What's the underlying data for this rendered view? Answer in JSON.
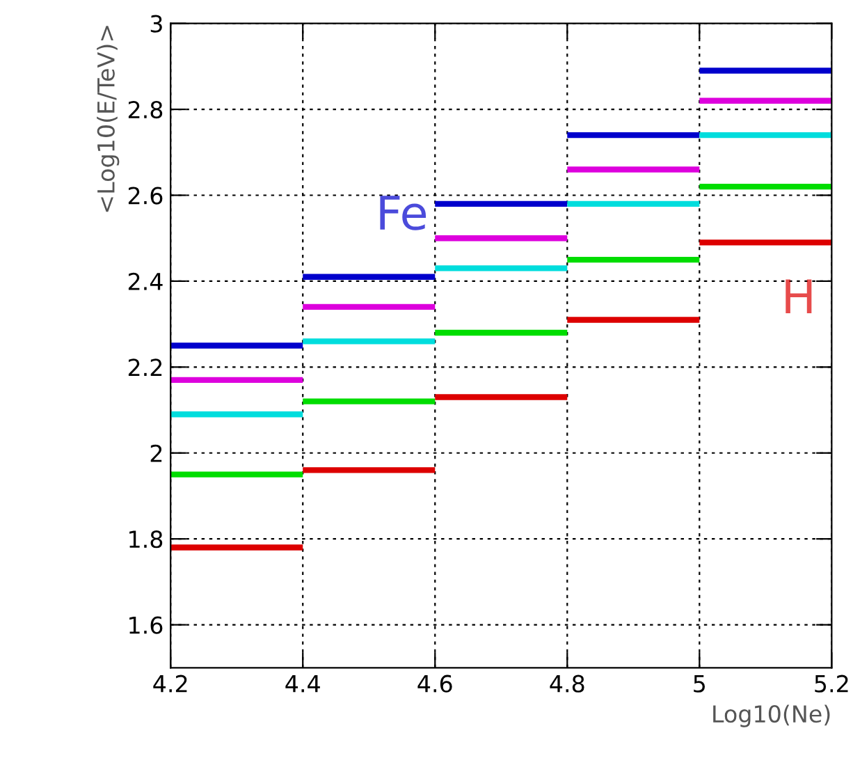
{
  "chart_data": {
    "type": "line",
    "xlabel": "Log10(Ne)",
    "ylabel": "<Log10(E/TeV)>",
    "series": [
      {
        "color": "#0000cc",
        "x": [
          4.2,
          4.4
        ],
        "values": [
          2.25,
          2.25
        ]
      },
      {
        "color": "#0000cc",
        "x": [
          4.4,
          4.6
        ],
        "values": [
          2.41,
          2.41
        ]
      },
      {
        "color": "#0000cc",
        "x": [
          4.6,
          4.8
        ],
        "values": [
          2.58,
          2.58
        ]
      },
      {
        "color": "#0000cc",
        "x": [
          4.8,
          5.0
        ],
        "values": [
          2.74,
          2.74
        ]
      },
      {
        "color": "#0000cc",
        "x": [
          5.0,
          5.2
        ],
        "values": [
          2.89,
          2.89
        ]
      },
      {
        "color": "#dd00dd",
        "x": [
          4.2,
          4.4
        ],
        "values": [
          2.17,
          2.17
        ]
      },
      {
        "color": "#dd00dd",
        "x": [
          4.4,
          4.6
        ],
        "values": [
          2.34,
          2.34
        ]
      },
      {
        "color": "#dd00dd",
        "x": [
          4.6,
          4.8
        ],
        "values": [
          2.5,
          2.5
        ]
      },
      {
        "color": "#dd00dd",
        "x": [
          4.8,
          5.0
        ],
        "values": [
          2.66,
          2.66
        ]
      },
      {
        "color": "#dd00dd",
        "x": [
          5.0,
          5.2
        ],
        "values": [
          2.82,
          2.82
        ]
      },
      {
        "color": "#00dddd",
        "x": [
          4.2,
          4.4
        ],
        "values": [
          2.09,
          2.09
        ]
      },
      {
        "color": "#00dddd",
        "x": [
          4.4,
          4.6
        ],
        "values": [
          2.26,
          2.26
        ]
      },
      {
        "color": "#00dddd",
        "x": [
          4.6,
          4.8
        ],
        "values": [
          2.43,
          2.43
        ]
      },
      {
        "color": "#00dddd",
        "x": [
          4.8,
          5.0
        ],
        "values": [
          2.58,
          2.58
        ]
      },
      {
        "color": "#00dddd",
        "x": [
          5.0,
          5.2
        ],
        "values": [
          2.74,
          2.74
        ]
      },
      {
        "color": "#00dd00",
        "x": [
          4.2,
          4.4
        ],
        "values": [
          1.95,
          1.95
        ]
      },
      {
        "color": "#00dd00",
        "x": [
          4.4,
          4.6
        ],
        "values": [
          2.12,
          2.12
        ]
      },
      {
        "color": "#00dd00",
        "x": [
          4.6,
          4.8
        ],
        "values": [
          2.28,
          2.28
        ]
      },
      {
        "color": "#00dd00",
        "x": [
          4.8,
          5.0
        ],
        "values": [
          2.45,
          2.45
        ]
      },
      {
        "color": "#00dd00",
        "x": [
          5.0,
          5.2
        ],
        "values": [
          2.62,
          2.62
        ]
      },
      {
        "color": "#dd0000",
        "x": [
          4.2,
          4.4
        ],
        "values": [
          1.78,
          1.78
        ]
      },
      {
        "color": "#dd0000",
        "x": [
          4.4,
          4.6
        ],
        "values": [
          1.96,
          1.96
        ]
      },
      {
        "color": "#dd0000",
        "x": [
          4.6,
          4.8
        ],
        "values": [
          2.13,
          2.13
        ]
      },
      {
        "color": "#dd0000",
        "x": [
          4.8,
          5.0
        ],
        "values": [
          2.31,
          2.31
        ]
      },
      {
        "color": "#dd0000",
        "x": [
          5.0,
          5.2
        ],
        "values": [
          2.49,
          2.49
        ]
      }
    ],
    "annotations": [
      "Fe",
      "H"
    ],
    "xlim": [
      4.2,
      5.2
    ],
    "xticks": [
      4.2,
      4.4,
      4.6,
      4.8,
      5,
      5.2
    ],
    "ylim": [
      1.5,
      3.0
    ],
    "yticks": [
      1.6,
      1.8,
      2,
      2.2,
      2.4,
      2.6,
      2.8,
      3
    ],
    "grid": true
  }
}
